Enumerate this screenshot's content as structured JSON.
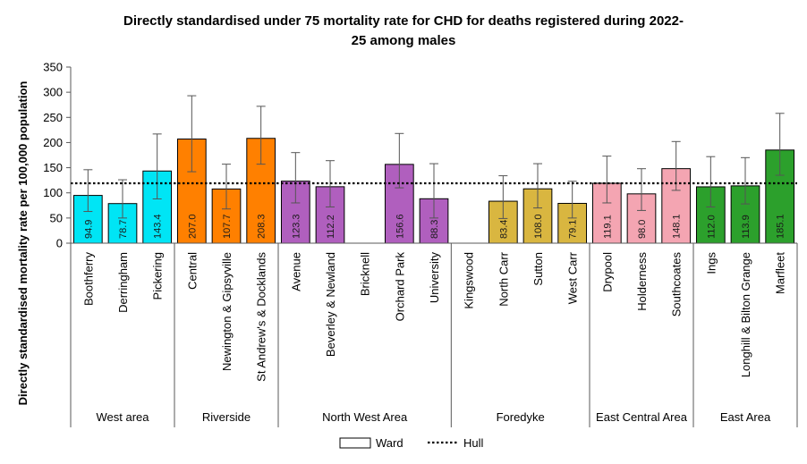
{
  "chart_data": {
    "type": "bar",
    "title": "Directly standardised under 75 mortality rate for CHD for deaths registered during 2022-25 among males",
    "title_lines": [
      "Directly standardised under 75 mortality rate for CHD for deaths registered during 2022-",
      "25 among males"
    ],
    "ylabel": "Directly standardised mortality rate per 100,000 population",
    "ylim": [
      0,
      350
    ],
    "yticks": [
      0,
      50,
      100,
      150,
      200,
      250,
      300,
      350
    ],
    "reference_line": {
      "name": "Hull",
      "value": 119
    },
    "legend": {
      "placement": "bottom",
      "items": [
        "Ward",
        "Hull"
      ]
    },
    "grid": false,
    "groups": [
      {
        "name": "West area",
        "color": "#00E5F5",
        "wards": [
          {
            "name": "Boothferry",
            "value": 94.9,
            "label": "94.9",
            "ci": [
              63,
              146
            ]
          },
          {
            "name": "Derringham",
            "value": 78.7,
            "label": "78.7",
            "ci": [
              50,
              126
            ]
          },
          {
            "name": "Pickering",
            "value": 143.4,
            "label": "143.4",
            "ci": [
              88,
              217
            ]
          }
        ]
      },
      {
        "name": "Riverside",
        "color": "#FF8000",
        "wards": [
          {
            "name": "Central",
            "value": 207.0,
            "label": "207.0",
            "ci": [
              142,
              293
            ]
          },
          {
            "name": "Newington & Gipsyville",
            "value": 107.7,
            "label": "107.7",
            "ci": [
              68,
              157
            ]
          },
          {
            "name": "St Andrew's & Docklands",
            "value": 208.3,
            "label": "208.3",
            "ci": [
              157,
              272
            ]
          }
        ]
      },
      {
        "name": "North West Area",
        "color": "#B05FBE",
        "wards": [
          {
            "name": "Avenue",
            "value": 123.3,
            "label": "123.3",
            "ci": [
              80,
              180
            ]
          },
          {
            "name": "Beverley & Newland",
            "value": 112.2,
            "label": "112.2",
            "ci": [
              72,
              164
            ]
          },
          {
            "name": "Bricknell",
            "value": null,
            "label": "",
            "ci": null
          },
          {
            "name": "Orchard Park",
            "value": 156.6,
            "label": "156.6",
            "ci": [
              110,
              218
            ]
          },
          {
            "name": "University",
            "value": 88.3,
            "label": "88.3",
            "ci": [
              50,
              158
            ]
          }
        ]
      },
      {
        "name": "Foredyke",
        "color": "#D9B640",
        "wards": [
          {
            "name": "Kingswood",
            "value": null,
            "label": "",
            "ci": null
          },
          {
            "name": "North Carr",
            "value": 83.4,
            "label": "83.4",
            "ci": [
              49,
              134
            ]
          },
          {
            "name": "Sutton",
            "value": 108.0,
            "label": "108.0",
            "ci": [
              70,
              158
            ]
          },
          {
            "name": "West Carr",
            "value": 79.1,
            "label": "79.1",
            "ci": [
              50,
              123
            ]
          }
        ]
      },
      {
        "name": "East Central Area",
        "color": "#F4A5B2",
        "wards": [
          {
            "name": "Drypool",
            "value": 119.1,
            "label": "119.1",
            "ci": [
              80,
              173
            ]
          },
          {
            "name": "Holderness",
            "value": 98.0,
            "label": "98.0",
            "ci": [
              65,
              148
            ]
          },
          {
            "name": "Southcoates",
            "value": 148.1,
            "label": "148.1",
            "ci": [
              105,
              202
            ]
          }
        ]
      },
      {
        "name": "East Area",
        "color": "#2CA02C",
        "wards": [
          {
            "name": "Ings",
            "value": 112.0,
            "label": "112.0",
            "ci": [
              72,
              172
            ]
          },
          {
            "name": "Longhill & Bilton Grange",
            "value": 113.9,
            "label": "113.9",
            "ci": [
              78,
              170
            ]
          },
          {
            "name": "Marfleet",
            "value": 185.1,
            "label": "185.1",
            "ci": [
              135,
              258
            ]
          }
        ]
      }
    ]
  }
}
